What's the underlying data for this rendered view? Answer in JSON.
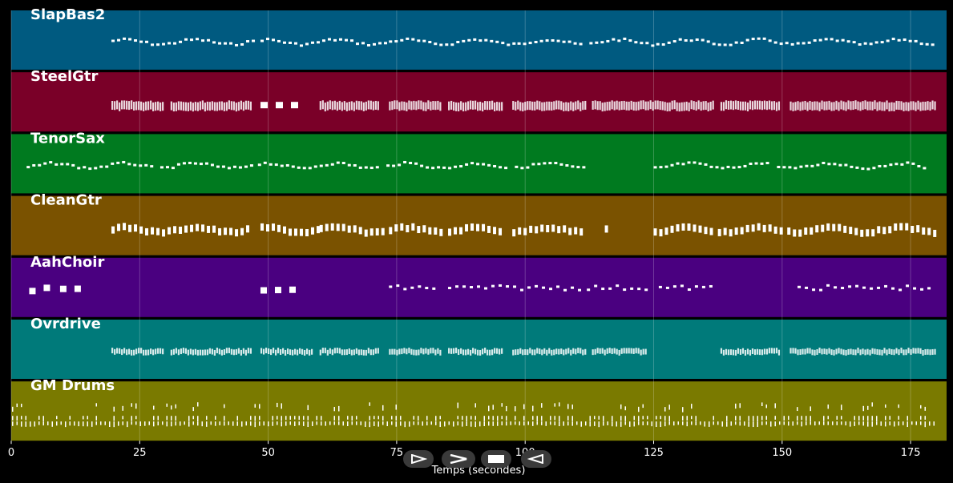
{
  "chart_data": {
    "type": "piano-roll",
    "xlabel": "Temps (secondes)",
    "xlim": [
      0,
      182
    ],
    "x_ticks": [
      0,
      25,
      50,
      75,
      100,
      125,
      150,
      175
    ],
    "grid": true,
    "tracks": [
      {
        "name": "SlapBas2",
        "color": "#005a80",
        "style": "bass",
        "segments": [
          [
            19.5,
            48
          ],
          [
            48.5,
            73
          ],
          [
            73.5,
            98
          ],
          [
            98.5,
            112
          ],
          [
            112.5,
            125
          ],
          [
            125.5,
            137
          ],
          [
            137.5,
            180
          ]
        ]
      },
      {
        "name": "SteelGtr",
        "color": "#7a0028",
        "style": "chords",
        "segments": [
          [
            19.5,
            30
          ],
          [
            31,
            47
          ],
          [
            48.5,
            57
          ],
          [
            60,
            72
          ],
          [
            73.5,
            84
          ],
          [
            85,
            96
          ],
          [
            97.5,
            112
          ],
          [
            113,
            137
          ],
          [
            138,
            150
          ],
          [
            151.5,
            180
          ]
        ]
      },
      {
        "name": "TenorSax",
        "color": "#007a1f",
        "style": "melody",
        "segments": [
          [
            3,
            28
          ],
          [
            29,
            47
          ],
          [
            48,
            72
          ],
          [
            73,
            97
          ],
          [
            98,
            112
          ],
          [
            125,
            148
          ],
          [
            149,
            178
          ]
        ]
      },
      {
        "name": "CleanGtr",
        "color": "#7a5200",
        "style": "mixed",
        "segments": [
          [
            19.5,
            47
          ],
          [
            48.5,
            60
          ],
          [
            60,
            73
          ],
          [
            73.5,
            84
          ],
          [
            85,
            96
          ],
          [
            97.5,
            112
          ],
          [
            115.5,
            116.5
          ],
          [
            125,
            137
          ],
          [
            137.5,
            150
          ],
          [
            151,
            180
          ]
        ]
      },
      {
        "name": "AahChoir",
        "color": "#4a0080",
        "style": "choir",
        "segments": [
          [
            3.5,
            9
          ],
          [
            9.5,
            15
          ],
          [
            48.5,
            57
          ],
          [
            73.5,
            84
          ],
          [
            85,
            112
          ],
          [
            112,
            125
          ],
          [
            126,
            137
          ],
          [
            153,
            180
          ]
        ]
      },
      {
        "name": "Ovrdrive",
        "color": "#007a7a",
        "style": "dense",
        "segments": [
          [
            19.5,
            30
          ],
          [
            31,
            47
          ],
          [
            48.5,
            59
          ],
          [
            60,
            72
          ],
          [
            73.5,
            84
          ],
          [
            85,
            96
          ],
          [
            97.5,
            112
          ],
          [
            113,
            124
          ],
          [
            138,
            150
          ],
          [
            151.5,
            180
          ]
        ]
      },
      {
        "name": "GM Drums",
        "color": "#7a7a00",
        "style": "drums",
        "segments": [
          [
            0,
            180
          ]
        ]
      }
    ]
  },
  "controls": [
    {
      "name": "play-button",
      "glyph": "play"
    },
    {
      "name": "fast-forward-button",
      "glyph": "forward"
    },
    {
      "name": "stop-button",
      "glyph": "stop"
    },
    {
      "name": "rewind-button",
      "glyph": "rewind"
    }
  ]
}
